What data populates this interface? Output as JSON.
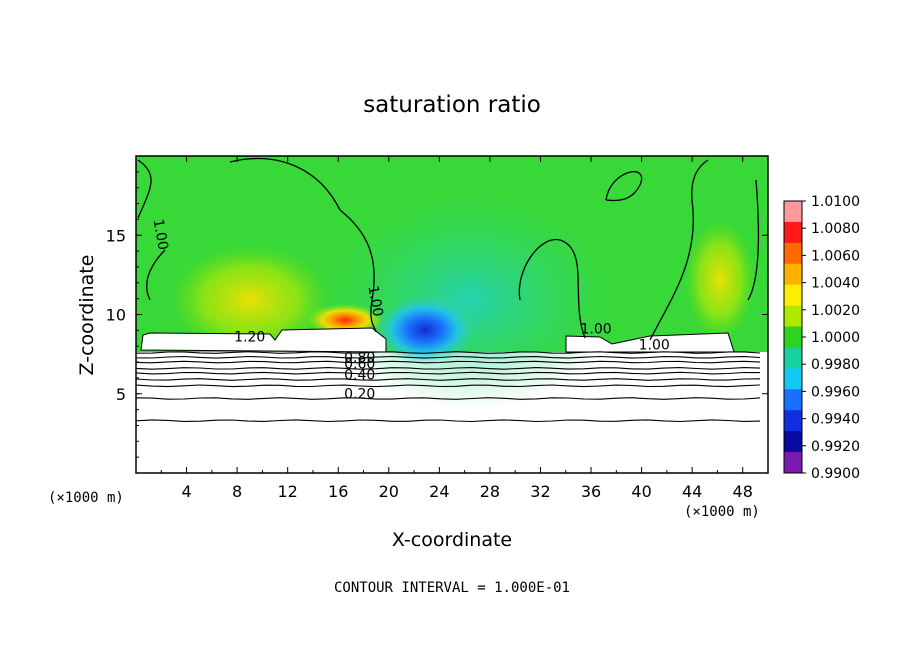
{
  "chart_data": {
    "type": "heatmap",
    "title": "saturation ratio",
    "xlabel": "X-coordinate",
    "ylabel": "Z-coordinate",
    "x_unit_left": "(×1000 m)",
    "x_unit_right": "(×1000 m)",
    "xlim": [
      0,
      50
    ],
    "ylim": [
      0,
      20
    ],
    "x_ticks": [
      4,
      8,
      12,
      16,
      20,
      24,
      28,
      32,
      36,
      40,
      44,
      48
    ],
    "y_ticks": [
      5,
      10,
      15
    ],
    "footer": "CONTOUR INTERVAL = 1.000E-01",
    "colorbar": {
      "min": 0.99,
      "max": 1.01,
      "labels": [
        "1.0100",
        "1.0080",
        "1.0060",
        "1.0040",
        "1.0020",
        "1.0000",
        "0.9980",
        "0.9960",
        "0.9940",
        "0.9920",
        "0.9900"
      ],
      "colors": [
        "#ff9a9a",
        "#ff1a1a",
        "#ff6a00",
        "#ffb000",
        "#ffee00",
        "#b0e800",
        "#2cd41e",
        "#18d0a0",
        "#14c8f0",
        "#1870ff",
        "#1030e0",
        "#0a0aa0",
        "#7a1ab0"
      ]
    },
    "contour_labels": [
      {
        "text": "1.00",
        "x": 1.6,
        "z": 15.0,
        "rotate": 80
      },
      {
        "text": "1.00",
        "x": 18.6,
        "z": 10.8,
        "rotate": 80
      },
      {
        "text": "1.20",
        "x": 9.0,
        "z": 8.3,
        "rotate": 0
      },
      {
        "text": "1.00",
        "x": 36.4,
        "z": 8.8,
        "rotate": 0
      },
      {
        "text": "1.00",
        "x": 41.0,
        "z": 7.8,
        "rotate": 0
      },
      {
        "text": "0.80",
        "x": 17.7,
        "z": 7.0,
        "rotate": 0
      },
      {
        "text": "0.60",
        "x": 17.7,
        "z": 6.6,
        "rotate": 0
      },
      {
        "text": "0.40",
        "x": 17.7,
        "z": 5.9,
        "rotate": 0
      },
      {
        "text": "0.20",
        "x": 17.7,
        "z": 4.7,
        "rotate": 0
      }
    ],
    "low_contours_z": [
      3.3,
      4.7,
      5.5,
      5.9,
      6.3,
      6.6,
      7.0,
      7.3,
      7.6
    ],
    "regions": [
      {
        "name": "cloud-layer-white",
        "x0": 0.4,
        "x1": 19.2,
        "z0": 7.8,
        "z1": 9.0
      },
      {
        "name": "cloud-layer-white",
        "x0": 34.0,
        "x1": 47.0,
        "z0": 7.9,
        "z1": 8.9
      }
    ],
    "field_notes": {
      "background_value": 1.001,
      "dry_anomaly_center": [
        22.0,
        9.2
      ],
      "dry_anomaly_min": 0.992,
      "moist_max_center": [
        16.5,
        9.6
      ],
      "moist_max_value": 1.008
    }
  }
}
